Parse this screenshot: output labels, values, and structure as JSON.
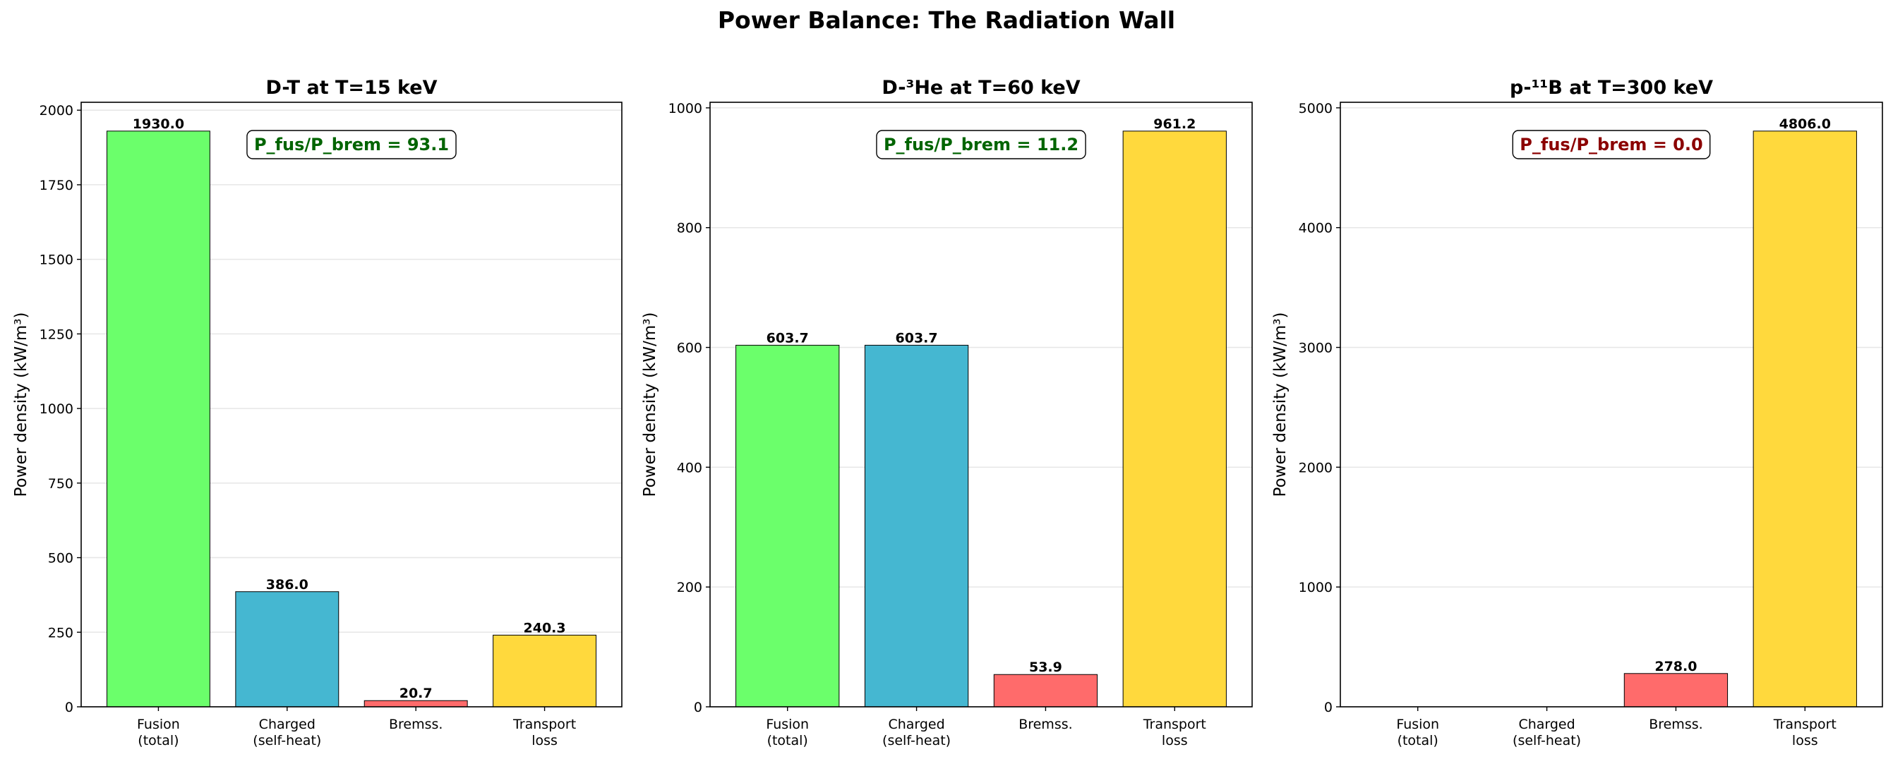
{
  "figure_title": "Power Balance: The Radiation Wall",
  "colors": {
    "fusion": "#6bff6b",
    "charged": "#45b7d1",
    "brems": "#ff6b6b",
    "transport": "#ffd93d",
    "ratio_good": "#006400",
    "ratio_bad": "#8b0000"
  },
  "chart_data": [
    {
      "type": "bar",
      "title": "D-T at T=15 keV",
      "ylabel": "Power density (kW/m³)",
      "categories": [
        "Fusion\n(total)",
        "Charged\n(self-heat)",
        "Bremss.",
        "Transport\nloss"
      ],
      "values": [
        1930.0,
        386.0,
        20.7,
        240.3
      ],
      "value_labels": [
        "1930.0",
        "386.0",
        "20.7",
        "240.3"
      ],
      "ylim": [
        0,
        2026.5
      ],
      "yticks": [
        0,
        250,
        500,
        750,
        1000,
        1250,
        1500,
        1750,
        2000
      ],
      "grid": "y",
      "annotation": "P_fus/P_brem = 93.1",
      "annotation_color": "ratio_good"
    },
    {
      "type": "bar",
      "title": "D-³He at T=60 keV",
      "ylabel": "Power density (kW/m³)",
      "categories": [
        "Fusion\n(total)",
        "Charged\n(self-heat)",
        "Bremss.",
        "Transport\nloss"
      ],
      "values": [
        603.7,
        603.7,
        53.9,
        961.2
      ],
      "value_labels": [
        "603.7",
        "603.7",
        "53.9",
        "961.2"
      ],
      "ylim": [
        0,
        1009.3
      ],
      "yticks": [
        0,
        200,
        400,
        600,
        800,
        1000
      ],
      "grid": "y",
      "annotation": "P_fus/P_brem = 11.2",
      "annotation_color": "ratio_good"
    },
    {
      "type": "bar",
      "title": "p-¹¹B at T=300 keV",
      "ylabel": "Power density (kW/m³)",
      "categories": [
        "Fusion\n(total)",
        "Charged\n(self-heat)",
        "Bremss.",
        "Transport\nloss"
      ],
      "values": [
        0,
        0,
        278.0,
        4806.0
      ],
      "value_labels": [
        "",
        "",
        "278.0",
        "4806.0"
      ],
      "ylim": [
        0,
        5046.3
      ],
      "yticks": [
        0,
        1000,
        2000,
        3000,
        4000,
        5000
      ],
      "grid": "y",
      "annotation": "P_fus/P_brem = 0.0",
      "annotation_color": "ratio_bad"
    }
  ]
}
